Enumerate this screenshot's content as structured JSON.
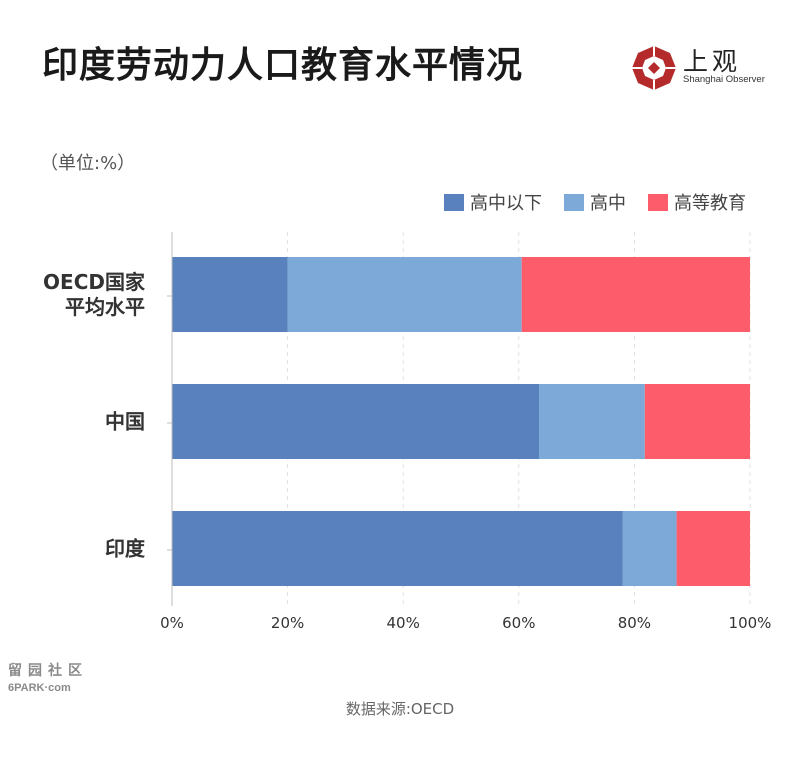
{
  "title": "印度劳动力人口教育水平情况",
  "brand": {
    "name_cn": "上观",
    "name_en": "Shanghai Observer"
  },
  "unit": "（单位:%）",
  "source": "数据来源:OECD",
  "watermark": {
    "cn": "留园社区",
    "en": "6PARK·com"
  },
  "chart_data": {
    "type": "bar",
    "orientation": "horizontal",
    "stacked": true,
    "categories": [
      [
        "OECD国家",
        "平均水平"
      ],
      [
        "中国"
      ],
      [
        "印度"
      ]
    ],
    "series": [
      {
        "name": "高中以下",
        "color": "#5981bd",
        "values": [
          20,
          63.5,
          78
        ]
      },
      {
        "name": "高中",
        "color": "#7da9d8",
        "values": [
          40.5,
          18.3,
          9.3
        ]
      },
      {
        "name": "高等教育",
        "color": "#fd5d6a",
        "values": [
          39.5,
          18.2,
          12.7
        ]
      }
    ],
    "xlim": [
      0,
      100
    ],
    "xticks": [
      "0%",
      "20%",
      "40%",
      "60%",
      "80%",
      "100%"
    ],
    "grid": true,
    "legend_position": "top-right"
  }
}
